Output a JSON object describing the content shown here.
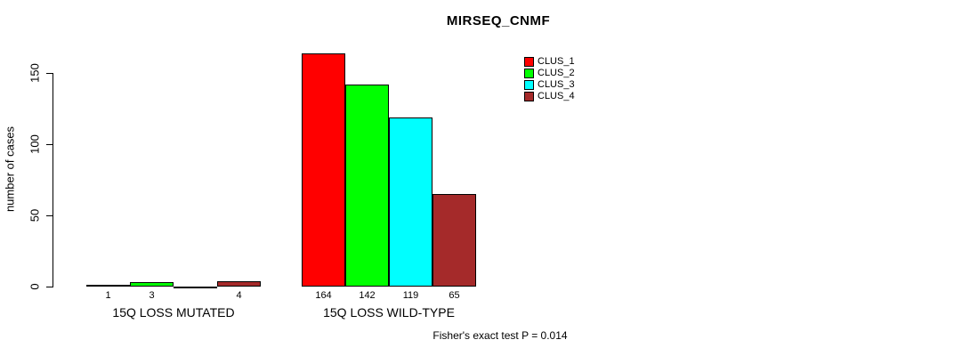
{
  "chart_data": {
    "type": "bar",
    "title": "MIRSEQ_CNMF",
    "ylabel": "number of cases",
    "yticks": [
      0,
      50,
      100,
      150
    ],
    "ylim": [
      0,
      170
    ],
    "grid": false,
    "legend_position": "top-right",
    "bar_value_labels_shown": true,
    "categories": [
      "15Q LOSS MUTATED",
      "15Q LOSS WILD-TYPE"
    ],
    "series": [
      {
        "name": "CLUS_1",
        "color": "#FF0000",
        "values": [
          1,
          164
        ]
      },
      {
        "name": "CLUS_2",
        "color": "#00FF00",
        "values": [
          3,
          142
        ]
      },
      {
        "name": "CLUS_3",
        "color": "#00FFFF",
        "values": [
          0,
          119
        ]
      },
      {
        "name": "CLUS_4",
        "color": "#A52A2A",
        "values": [
          4,
          65
        ]
      }
    ],
    "annotation": "Fisher's exact test P = 0.014"
  }
}
